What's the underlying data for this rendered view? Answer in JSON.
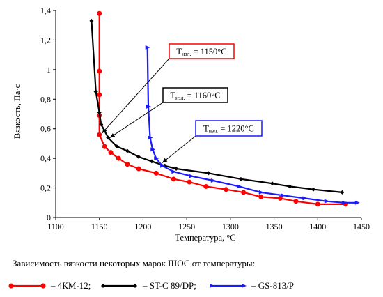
{
  "chart_data": {
    "type": "line",
    "title": "",
    "xlabel": "Температура, °С",
    "ylabel": "Вязкость, Па·с",
    "xlim": [
      1100,
      1450
    ],
    "ylim": [
      0,
      1.4
    ],
    "x_ticks": [
      "1100",
      "1150",
      "1200",
      "1250",
      "1300",
      "1350",
      "1400",
      "1450"
    ],
    "y_ticks": [
      "0",
      "0,2",
      "0,4",
      "0,6",
      "0,8",
      "1",
      "1,2",
      "1,4"
    ],
    "grid": false,
    "series": [
      {
        "name": "4КМ-12;",
        "color": "#ff0000",
        "marker": "circle",
        "x": [
          1150,
          1150,
          1150,
          1150,
          1150,
          1156,
          1163,
          1172,
          1182,
          1195,
          1215,
          1235,
          1253,
          1272,
          1295,
          1315,
          1335,
          1357,
          1375,
          1400,
          1432
        ],
        "y": [
          1.38,
          0.99,
          0.83,
          0.69,
          0.56,
          0.48,
          0.44,
          0.4,
          0.36,
          0.33,
          0.3,
          0.26,
          0.24,
          0.21,
          0.19,
          0.17,
          0.14,
          0.13,
          0.11,
          0.09,
          0.09
        ]
      },
      {
        "name": "ST-C 89/DP;",
        "color": "#000000",
        "marker": "diamond",
        "x": [
          1141,
          1146,
          1150,
          1152,
          1160,
          1170,
          1182,
          1195,
          1210,
          1225,
          1238,
          1275,
          1312,
          1348,
          1368,
          1395,
          1428
        ],
        "y": [
          1.33,
          0.85,
          0.71,
          0.63,
          0.54,
          0.48,
          0.45,
          0.41,
          0.38,
          0.35,
          0.33,
          0.3,
          0.26,
          0.23,
          0.21,
          0.19,
          0.17
        ]
      },
      {
        "name": "GS-813/P",
        "color": "#1a1aff",
        "marker": "arrow",
        "x": [
          1205,
          1206,
          1208,
          1211,
          1215,
          1222,
          1235,
          1255,
          1280,
          1310,
          1335,
          1360,
          1385,
          1410,
          1430,
          1445
        ],
        "y": [
          1.15,
          0.75,
          0.54,
          0.46,
          0.4,
          0.35,
          0.31,
          0.28,
          0.25,
          0.21,
          0.17,
          0.15,
          0.13,
          0.11,
          0.1,
          0.1
        ]
      }
    ],
    "annotations": [
      {
        "main": "T",
        "sub": "изл.",
        "value": " = 1150°С",
        "color": "#ff0000",
        "points_to": [
          1153,
          0.57
        ]
      },
      {
        "main": "T",
        "sub": "изл.",
        "value": " = 1160°С",
        "color": "#000000",
        "points_to": [
          1162,
          0.54
        ]
      },
      {
        "main": "T",
        "sub": "изл.",
        "value": " = 1220°С",
        "color": "#1a1aff",
        "points_to": [
          1222,
          0.37
        ]
      }
    ]
  },
  "caption": "Зависимость вязкости некоторых марок ШОС от температуры:",
  "legend": [
    {
      "label": "– 4КМ-12;",
      "color": "#ff0000",
      "marker": "circle"
    },
    {
      "label": "– ST-C 89/DP;",
      "color": "#000000",
      "marker": "diamond"
    },
    {
      "label": "– GS-813/P",
      "color": "#1a1aff",
      "marker": "arrow"
    }
  ]
}
